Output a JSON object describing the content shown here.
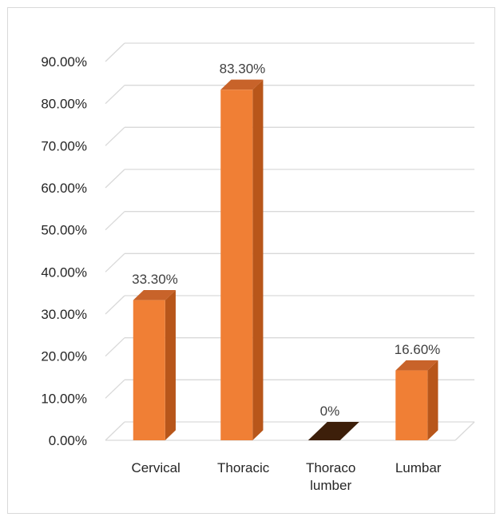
{
  "chart_data": {
    "type": "bar",
    "style": "3d-column",
    "categories": [
      "Cervical",
      "Thoracic",
      "Thoraco lumber",
      "Lumbar"
    ],
    "category_lines": [
      [
        "Cervical"
      ],
      [
        "Thoracic"
      ],
      [
        "Thoraco",
        "lumber"
      ],
      [
        "Lumbar"
      ]
    ],
    "values": [
      33.3,
      83.3,
      0,
      16.6
    ],
    "data_labels": [
      "33.30%",
      "83.30%",
      "0%",
      "16.60%"
    ],
    "title": "",
    "xlabel": "",
    "ylabel": "",
    "ylim": [
      0,
      90
    ],
    "y_ticks": [
      0,
      10,
      20,
      30,
      40,
      50,
      60,
      70,
      80,
      90
    ],
    "y_tick_labels": [
      "0.00%",
      "10.00%",
      "20.00%",
      "30.00%",
      "40.00%",
      "50.00%",
      "60.00%",
      "70.00%",
      "80.00%",
      "90.00%"
    ],
    "grid": true,
    "legend": "none",
    "colors": {
      "bar_front": "#f07f35",
      "bar_side": "#b8561a",
      "bar_top": "#c8632a",
      "gridline": "#d9d9d9",
      "zero_bar": "#3d1f0a"
    }
  }
}
